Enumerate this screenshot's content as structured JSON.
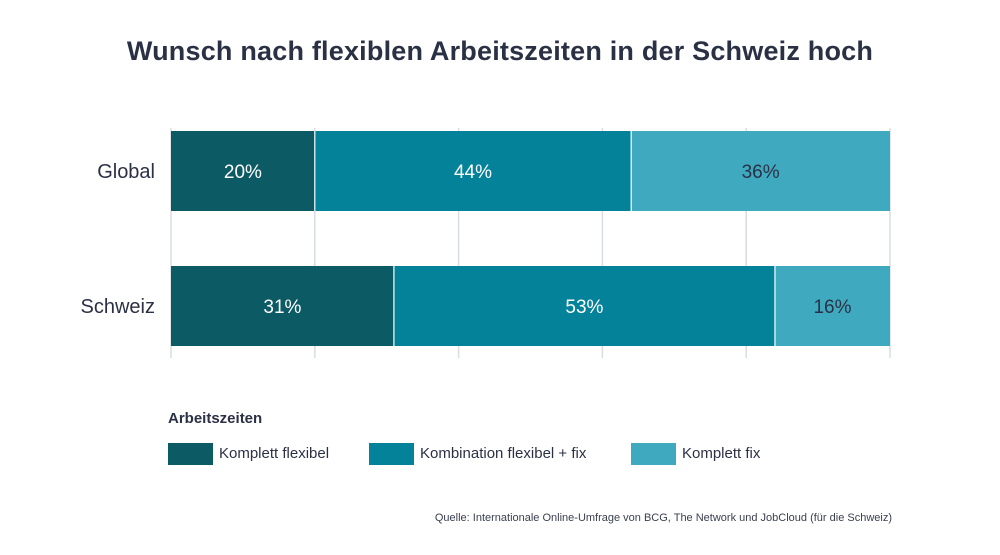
{
  "chart_data": {
    "type": "bar",
    "orientation": "horizontal",
    "stacked": true,
    "title": "Wunsch nach flexiblen Arbeitszeiten in der Schweiz hoch",
    "categories": [
      "Global",
      "Schweiz"
    ],
    "series": [
      {
        "name": "Komplett flexibel",
        "values": [
          20,
          31
        ],
        "labels": [
          "20%",
          "31%"
        ],
        "color": "#0c5a64"
      },
      {
        "name": "Kombination flexibel + fix",
        "values": [
          44,
          53
        ],
        "labels": [
          "44%",
          "53%"
        ],
        "color": "#04829a"
      },
      {
        "name": "Komplett fix",
        "values": [
          36,
          16
        ],
        "labels": [
          "36%",
          "16%"
        ],
        "color": "#3ea9bf"
      }
    ],
    "xlim": [
      0,
      100
    ],
    "grid": true,
    "legend_title": "Arbeitszeiten",
    "legend_position": "bottom-left",
    "source": "Quelle: Internationale Online-Umfrage von BCG, The Network und JobCloud (für die Schweiz)"
  }
}
